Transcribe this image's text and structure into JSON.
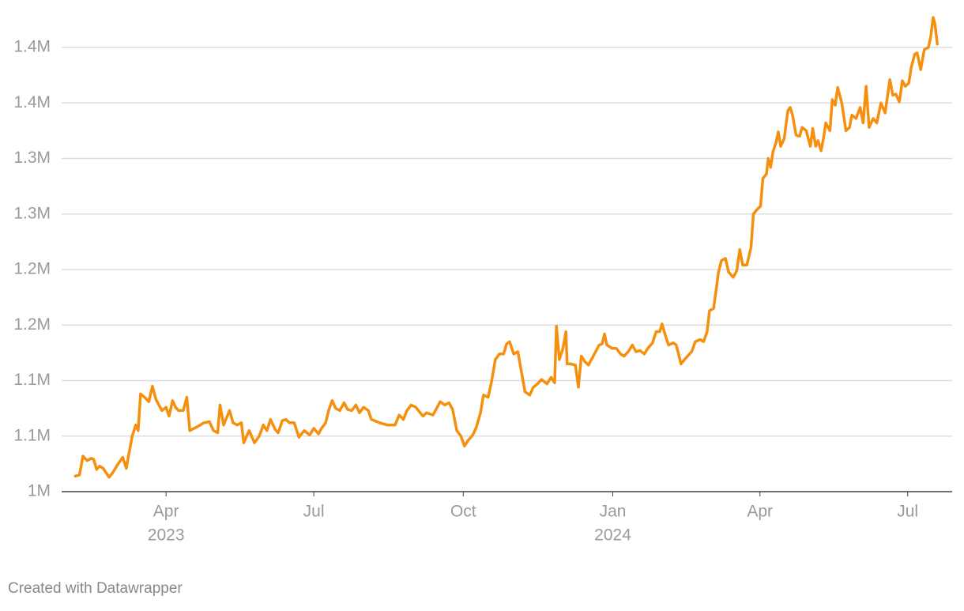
{
  "chart_data": {
    "type": "line",
    "footer": "Created with Datawrapper",
    "color": "#f5900f",
    "grid": true,
    "xlim": [
      2023.071,
      2024.572
    ],
    "ylim": [
      1000000,
      1400000
    ],
    "yticks": [
      {
        "value": 1000000,
        "label": "1M"
      },
      {
        "value": 1050000,
        "label": "1.1M"
      },
      {
        "value": 1100000,
        "label": "1.1M"
      },
      {
        "value": 1150000,
        "label": "1.2M"
      },
      {
        "value": 1200000,
        "label": "1.2M"
      },
      {
        "value": 1250000,
        "label": "1.3M"
      },
      {
        "value": 1300000,
        "label": "1.3M"
      },
      {
        "value": 1350000,
        "label": "1.4M"
      },
      {
        "value": 1400000,
        "label": "1.4M"
      }
    ],
    "xticks": [
      {
        "value": 2023.247,
        "label": "Apr"
      },
      {
        "value": 2023.496,
        "label": "Jul"
      },
      {
        "value": 2023.748,
        "label": "Oct"
      },
      {
        "value": 2024.0,
        "label": "Jan"
      },
      {
        "value": 2024.248,
        "label": "Apr"
      },
      {
        "value": 2024.497,
        "label": "Jul"
      }
    ],
    "year_labels": [
      {
        "value": 2023.247,
        "label": "2023"
      },
      {
        "value": 2024.0,
        "label": "2024"
      }
    ],
    "x": [
      2023.094,
      2023.101,
      2023.107,
      2023.114,
      2023.121,
      2023.125,
      2023.13,
      2023.135,
      2023.141,
      2023.146,
      2023.151,
      2023.157,
      2023.165,
      2023.174,
      2023.18,
      2023.184,
      2023.19,
      2023.196,
      2023.2,
      2023.204,
      2023.211,
      2023.218,
      2023.224,
      2023.23,
      2023.235,
      2023.24,
      2023.247,
      2023.252,
      2023.258,
      2023.263,
      2023.268,
      2023.276,
      2023.282,
      2023.287,
      2023.298,
      2023.311,
      2023.32,
      2023.327,
      2023.334,
      2023.338,
      2023.344,
      2023.354,
      2023.36,
      2023.367,
      2023.374,
      2023.378,
      2023.387,
      2023.396,
      2023.404,
      2023.411,
      2023.417,
      2023.423,
      2023.431,
      2023.436,
      2023.443,
      2023.449,
      2023.455,
      2023.463,
      2023.471,
      2023.48,
      2023.489,
      2023.496,
      2023.504,
      2023.509,
      2023.516,
      2023.521,
      2023.527,
      2023.533,
      2023.54,
      2023.547,
      2023.553,
      2023.56,
      2023.567,
      2023.573,
      2023.58,
      2023.588,
      2023.593,
      2023.607,
      2023.62,
      2023.633,
      2023.64,
      2023.647,
      2023.653,
      2023.66,
      2023.668,
      2023.68,
      2023.686,
      2023.697,
      2023.702,
      2023.709,
      2023.717,
      2023.724,
      2023.73,
      2023.737,
      2023.744,
      2023.75,
      2023.756,
      2023.764,
      2023.77,
      2023.777,
      2023.782,
      2023.79,
      2023.796,
      2023.802,
      2023.809,
      2023.816,
      2023.821,
      2023.826,
      2023.833,
      2023.84,
      2023.846,
      2023.852,
      2023.86,
      2023.866,
      2023.873,
      2023.88,
      2023.889,
      2023.896,
      2023.902,
      2023.905,
      2023.91,
      2023.916,
      2023.921,
      2023.923,
      2023.929,
      2023.937,
      2023.942,
      2023.947,
      2023.953,
      2023.959,
      2023.969,
      2023.977,
      2023.982,
      2023.986,
      2023.99,
      2023.999,
      2024.006,
      2024.013,
      2024.019,
      2024.026,
      2024.033,
      2024.039,
      2024.046,
      2024.053,
      2024.059,
      2024.067,
      2024.073,
      2024.079,
      2024.083,
      2024.089,
      2024.094,
      2024.102,
      2024.107,
      2024.115,
      2024.121,
      2024.126,
      2024.133,
      2024.139,
      2024.147,
      2024.153,
      2024.159,
      2024.163,
      2024.17,
      2024.174,
      2024.178,
      2024.183,
      2024.19,
      2024.195,
      2024.203,
      2024.209,
      2024.214,
      2024.219,
      2024.226,
      2024.233,
      2024.237,
      2024.243,
      2024.249,
      2024.253,
      2024.259,
      2024.262,
      2024.266,
      2024.27,
      2024.275,
      2024.279,
      2024.283,
      2024.289,
      2024.295,
      2024.299,
      2024.303,
      2024.309,
      2024.315,
      2024.319,
      2024.326,
      2024.333,
      2024.337,
      2024.342,
      2024.346,
      2024.351,
      2024.355,
      2024.359,
      2024.366,
      2024.37,
      2024.375,
      2024.379,
      2024.386,
      2024.393,
      2024.399,
      2024.403,
      2024.41,
      2024.417,
      2024.422,
      2024.427,
      2024.432,
      2024.439,
      2024.445,
      2024.452,
      2024.459,
      2024.467,
      2024.472,
      2024.477,
      2024.483,
      2024.488,
      2024.493,
      2024.499,
      2024.503,
      2024.509,
      2024.513,
      2024.519,
      2024.525,
      2024.532,
      2024.536,
      2024.54,
      2024.543,
      2024.547
    ],
    "values": [
      1014000,
      1015000,
      1032000,
      1028000,
      1030000,
      1029000,
      1020000,
      1023000,
      1021000,
      1017000,
      1013000,
      1017000,
      1024000,
      1031000,
      1021000,
      1033000,
      1050000,
      1060000,
      1055000,
      1088000,
      1085000,
      1081000,
      1095000,
      1083000,
      1078000,
      1073000,
      1076000,
      1068000,
      1082000,
      1076000,
      1073000,
      1073000,
      1085000,
      1055000,
      1058000,
      1062000,
      1063000,
      1055000,
      1053000,
      1078000,
      1060000,
      1073000,
      1062000,
      1060000,
      1062000,
      1044000,
      1055000,
      1044000,
      1050000,
      1060000,
      1055000,
      1065000,
      1056000,
      1053000,
      1064000,
      1065000,
      1062000,
      1062000,
      1049000,
      1055000,
      1051000,
      1057000,
      1052000,
      1057000,
      1062000,
      1073000,
      1082000,
      1075000,
      1073000,
      1080000,
      1074000,
      1073000,
      1078000,
      1071000,
      1076000,
      1073000,
      1065000,
      1062000,
      1060000,
      1060000,
      1069000,
      1065000,
      1073000,
      1078000,
      1076000,
      1068000,
      1071000,
      1069000,
      1074000,
      1081000,
      1078000,
      1080000,
      1074000,
      1055000,
      1050000,
      1041000,
      1046000,
      1051000,
      1058000,
      1071000,
      1087000,
      1085000,
      1100000,
      1119000,
      1124000,
      1124000,
      1133000,
      1135000,
      1124000,
      1126000,
      1108000,
      1090000,
      1087000,
      1094000,
      1097000,
      1101000,
      1097000,
      1103000,
      1098000,
      1149000,
      1119000,
      1129000,
      1144000,
      1115000,
      1115000,
      1114000,
      1094000,
      1122000,
      1117000,
      1114000,
      1124000,
      1132000,
      1133000,
      1142000,
      1132000,
      1129000,
      1129000,
      1124000,
      1122000,
      1126000,
      1132000,
      1126000,
      1127000,
      1124000,
      1129000,
      1134000,
      1144000,
      1144000,
      1151000,
      1140000,
      1132000,
      1134000,
      1132000,
      1115000,
      1119000,
      1122000,
      1126000,
      1135000,
      1137000,
      1135000,
      1144000,
      1163000,
      1165000,
      1181000,
      1197000,
      1208000,
      1210000,
      1198000,
      1193000,
      1199000,
      1218000,
      1204000,
      1204000,
      1220000,
      1250000,
      1254000,
      1257000,
      1282000,
      1286000,
      1300000,
      1292000,
      1306000,
      1314000,
      1324000,
      1311000,
      1318000,
      1343000,
      1346000,
      1339000,
      1321000,
      1320000,
      1328000,
      1325000,
      1311000,
      1327000,
      1311000,
      1316000,
      1307000,
      1318000,
      1332000,
      1325000,
      1353000,
      1348000,
      1364000,
      1350000,
      1325000,
      1328000,
      1339000,
      1336000,
      1346000,
      1332000,
      1365000,
      1328000,
      1336000,
      1332000,
      1350000,
      1341000,
      1371000,
      1357000,
      1358000,
      1351000,
      1370000,
      1365000,
      1368000,
      1382000,
      1394000,
      1395000,
      1380000,
      1398000,
      1400000,
      1410000,
      1427000,
      1421000,
      1403000
    ]
  }
}
